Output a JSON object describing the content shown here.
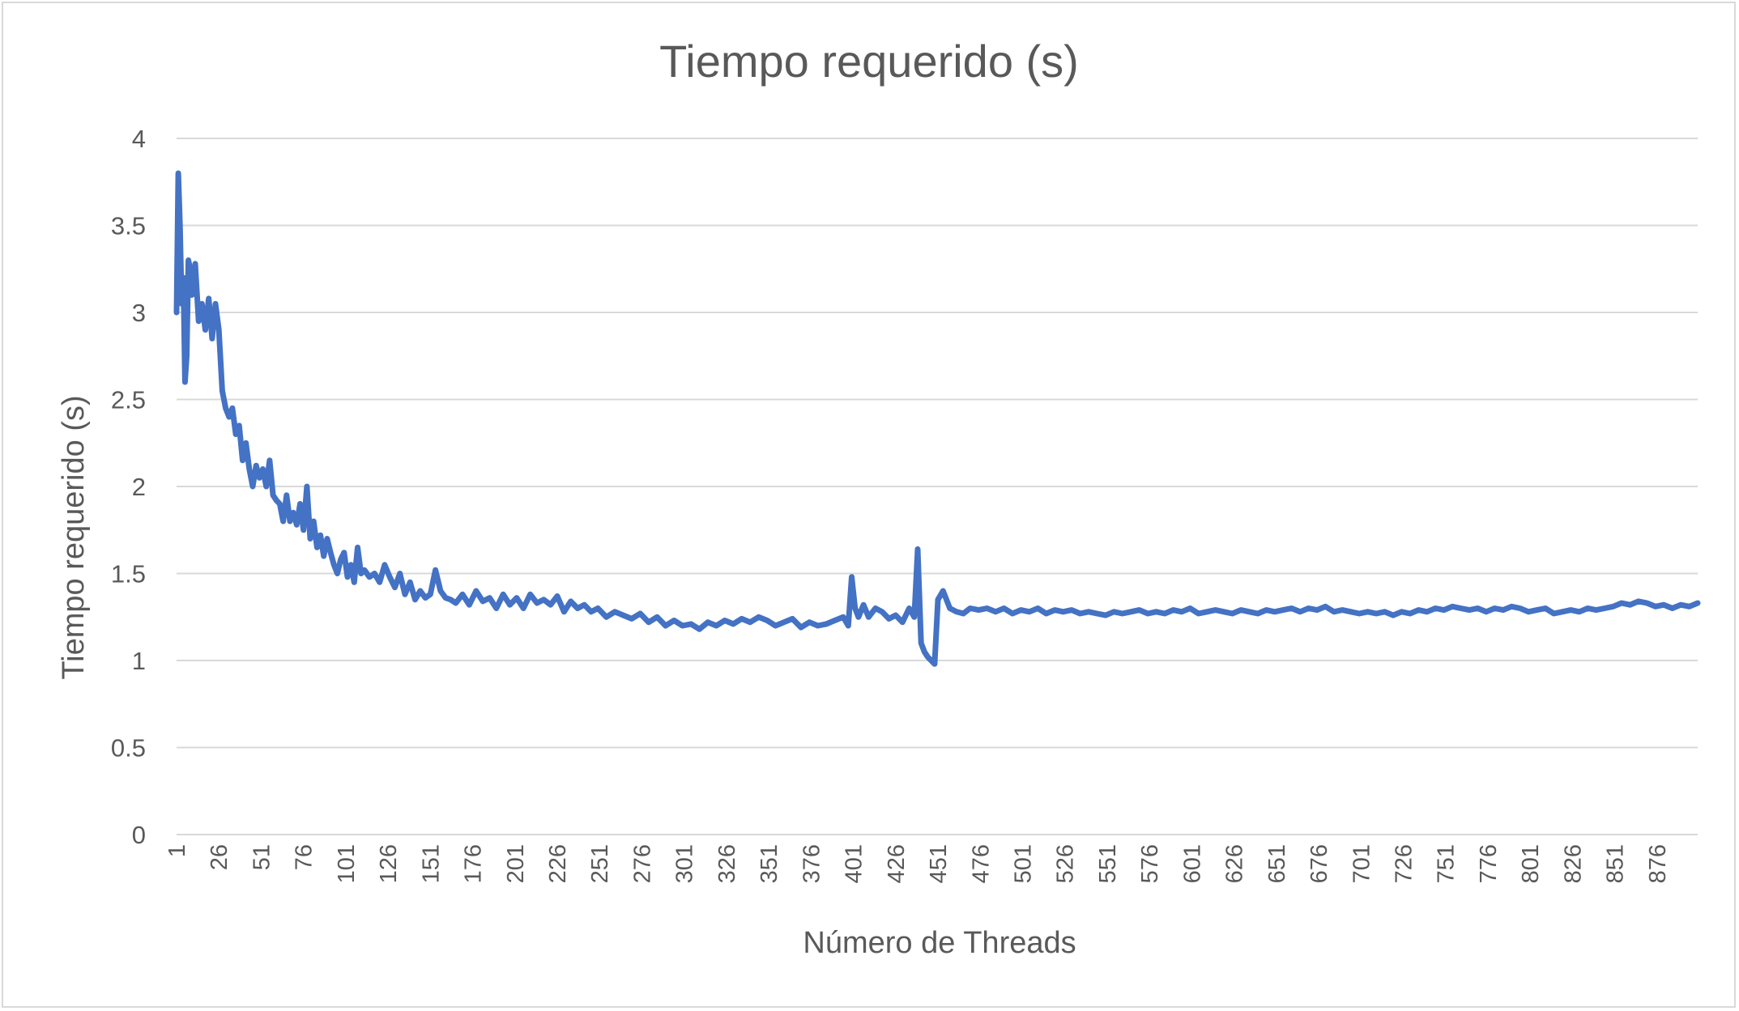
{
  "chart_data": {
    "type": "line",
    "title": "Tiempo requerido (s)",
    "xlabel": "Número de Threads",
    "ylabel": "Tiempo requerido (s)",
    "ylim": [
      0,
      4
    ],
    "yticks": [
      "0",
      "0.5",
      "1",
      "1.5",
      "2",
      "2.5",
      "3",
      "3.5",
      "4"
    ],
    "xticks": [
      "1",
      "26",
      "51",
      "76",
      "101",
      "126",
      "151",
      "176",
      "201",
      "226",
      "251",
      "276",
      "301",
      "326",
      "351",
      "376",
      "401",
      "426",
      "451",
      "476",
      "501",
      "526",
      "551",
      "576",
      "601",
      "626",
      "651",
      "676",
      "701",
      "726",
      "751",
      "776",
      "801",
      "826",
      "851",
      "876"
    ],
    "xlim": [
      1,
      900
    ],
    "grid": true,
    "line_color": "#4472c4",
    "x": [
      1,
      2,
      3,
      4,
      5,
      6,
      7,
      8,
      9,
      10,
      12,
      14,
      16,
      18,
      20,
      22,
      24,
      26,
      28,
      30,
      32,
      34,
      36,
      38,
      40,
      42,
      44,
      46,
      48,
      50,
      52,
      54,
      56,
      58,
      60,
      62,
      64,
      66,
      68,
      70,
      72,
      74,
      76,
      78,
      80,
      82,
      84,
      86,
      88,
      90,
      92,
      94,
      96,
      98,
      100,
      102,
      104,
      106,
      108,
      110,
      112,
      115,
      118,
      121,
      124,
      127,
      130,
      133,
      136,
      139,
      142,
      145,
      148,
      151,
      154,
      157,
      160,
      163,
      166,
      170,
      174,
      178,
      182,
      186,
      190,
      194,
      198,
      202,
      206,
      210,
      214,
      218,
      222,
      226,
      230,
      234,
      238,
      242,
      246,
      250,
      255,
      260,
      265,
      270,
      275,
      280,
      285,
      290,
      295,
      300,
      305,
      310,
      315,
      320,
      325,
      330,
      335,
      340,
      345,
      350,
      355,
      360,
      365,
      370,
      375,
      380,
      385,
      390,
      395,
      398,
      400,
      402,
      404,
      407,
      410,
      414,
      418,
      422,
      426,
      430,
      434,
      437,
      439,
      441,
      443,
      445,
      447,
      449,
      451,
      454,
      458,
      462,
      466,
      470,
      475,
      480,
      485,
      490,
      495,
      500,
      505,
      510,
      515,
      520,
      525,
      530,
      535,
      540,
      545,
      550,
      555,
      560,
      565,
      570,
      575,
      580,
      585,
      590,
      595,
      600,
      605,
      610,
      615,
      620,
      625,
      630,
      635,
      640,
      645,
      650,
      655,
      660,
      665,
      670,
      675,
      680,
      685,
      690,
      695,
      700,
      705,
      710,
      715,
      720,
      725,
      730,
      735,
      740,
      745,
      750,
      755,
      760,
      765,
      770,
      775,
      780,
      785,
      790,
      795,
      800,
      805,
      810,
      815,
      820,
      825,
      830,
      835,
      840,
      845,
      850,
      855,
      860,
      865,
      870,
      875,
      880,
      885,
      890,
      895,
      900
    ],
    "y": [
      3.0,
      3.8,
      3.5,
      3.05,
      3.2,
      2.6,
      2.75,
      3.3,
      3.25,
      3.1,
      3.28,
      2.95,
      3.05,
      2.9,
      3.08,
      2.85,
      3.05,
      2.9,
      2.55,
      2.45,
      2.4,
      2.45,
      2.3,
      2.35,
      2.15,
      2.25,
      2.1,
      2.0,
      2.12,
      2.05,
      2.1,
      2.0,
      2.15,
      1.95,
      1.92,
      1.9,
      1.8,
      1.95,
      1.8,
      1.85,
      1.78,
      1.9,
      1.75,
      2.0,
      1.7,
      1.8,
      1.65,
      1.72,
      1.6,
      1.7,
      1.62,
      1.55,
      1.5,
      1.58,
      1.62,
      1.48,
      1.55,
      1.45,
      1.65,
      1.5,
      1.52,
      1.48,
      1.5,
      1.45,
      1.55,
      1.48,
      1.42,
      1.5,
      1.38,
      1.45,
      1.35,
      1.4,
      1.36,
      1.38,
      1.52,
      1.4,
      1.36,
      1.35,
      1.33,
      1.38,
      1.32,
      1.4,
      1.34,
      1.36,
      1.3,
      1.38,
      1.32,
      1.36,
      1.3,
      1.38,
      1.33,
      1.35,
      1.32,
      1.37,
      1.28,
      1.34,
      1.3,
      1.32,
      1.28,
      1.3,
      1.25,
      1.28,
      1.26,
      1.24,
      1.27,
      1.22,
      1.25,
      1.2,
      1.23,
      1.2,
      1.21,
      1.18,
      1.22,
      1.2,
      1.23,
      1.21,
      1.24,
      1.22,
      1.25,
      1.23,
      1.2,
      1.22,
      1.24,
      1.19,
      1.22,
      1.2,
      1.21,
      1.23,
      1.25,
      1.2,
      1.48,
      1.3,
      1.25,
      1.32,
      1.25,
      1.3,
      1.28,
      1.24,
      1.26,
      1.22,
      1.3,
      1.25,
      1.64,
      1.1,
      1.05,
      1.02,
      1.0,
      0.98,
      1.35,
      1.4,
      1.3,
      1.28,
      1.27,
      1.3,
      1.29,
      1.3,
      1.28,
      1.3,
      1.27,
      1.29,
      1.28,
      1.3,
      1.27,
      1.29,
      1.28,
      1.29,
      1.27,
      1.28,
      1.27,
      1.26,
      1.28,
      1.27,
      1.28,
      1.29,
      1.27,
      1.28,
      1.27,
      1.29,
      1.28,
      1.3,
      1.27,
      1.28,
      1.29,
      1.28,
      1.27,
      1.29,
      1.28,
      1.27,
      1.29,
      1.28,
      1.29,
      1.3,
      1.28,
      1.3,
      1.29,
      1.31,
      1.28,
      1.29,
      1.28,
      1.27,
      1.28,
      1.27,
      1.28,
      1.26,
      1.28,
      1.27,
      1.29,
      1.28,
      1.3,
      1.29,
      1.31,
      1.3,
      1.29,
      1.3,
      1.28,
      1.3,
      1.29,
      1.31,
      1.3,
      1.28,
      1.29,
      1.3,
      1.27,
      1.28,
      1.29,
      1.28,
      1.3,
      1.29,
      1.3,
      1.31,
      1.33,
      1.32,
      1.34,
      1.33,
      1.31,
      1.32,
      1.3,
      1.32,
      1.31,
      1.33
    ]
  }
}
